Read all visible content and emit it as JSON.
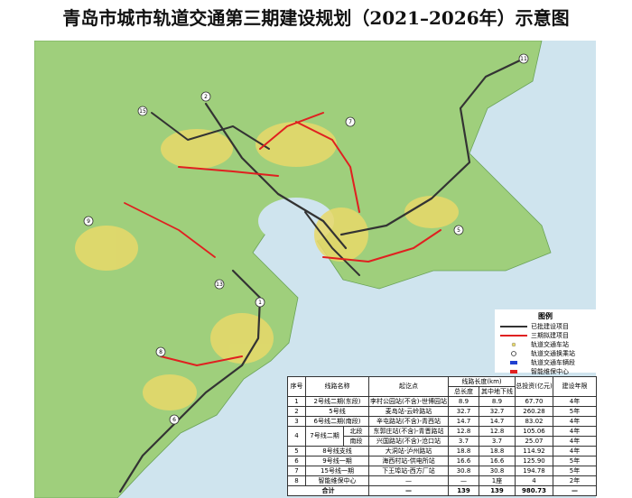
{
  "title": "青岛市城市轨道交通第三期建设规划（2021–2026年）示意图",
  "map": {
    "line_badges": [
      "11",
      "15",
      "9",
      "2",
      "1",
      "8",
      "5",
      "6",
      "13",
      "7"
    ]
  },
  "legend": {
    "title": "图例",
    "items": [
      "已批建设项目",
      "三期拟建项目",
      "轨道交通车站",
      "轨道交通换乘站",
      "轨道交通车辆段",
      "智能维保中心"
    ]
  },
  "table": {
    "header": [
      "序号",
      "线路名称",
      "起讫点",
      "线路长度(km)",
      "总投资(亿元)",
      "建设年限"
    ],
    "subheader": [
      "总长度",
      "其中地下线"
    ],
    "rows": [
      [
        "1",
        "2号线二期(东段)",
        "李村公园站(不含)-世博园站",
        "8.9",
        "8.9",
        "67.70",
        "4年"
      ],
      [
        "2",
        "5号线",
        "麦岛站-云岭路站",
        "32.7",
        "32.7",
        "260.28",
        "5年"
      ],
      [
        "3",
        "6号线二期(南段)",
        "辛屯路站(不含)-青西站",
        "14.7",
        "14.7",
        "83.02",
        "4年"
      ],
      [
        "4",
        "7号线二期",
        "北段",
        "东郭庄站(不含)-青晋路站",
        "12.8",
        "12.8",
        "105.06",
        "4年"
      ],
      [
        "南段",
        "兴国路站(不含)-沧口站",
        "3.7",
        "3.7",
        "25.07",
        "4年"
      ],
      [
        "5",
        "8号线支线",
        "大洞站-泸州路站",
        "18.8",
        "18.8",
        "114.92",
        "4年"
      ],
      [
        "6",
        "9号线一期",
        "海西村站-供电所站",
        "16.6",
        "16.6",
        "125.90",
        "5年"
      ],
      [
        "7",
        "15号线一期",
        "下王埠站-西方厂站",
        "30.8",
        "30.8",
        "194.78",
        "5年"
      ],
      [
        "8",
        "智能维保中心",
        "—",
        "—",
        "1座",
        "4",
        "2年"
      ]
    ],
    "total": [
      "合计",
      "—",
      "139",
      "139",
      "980.73",
      "—"
    ]
  }
}
